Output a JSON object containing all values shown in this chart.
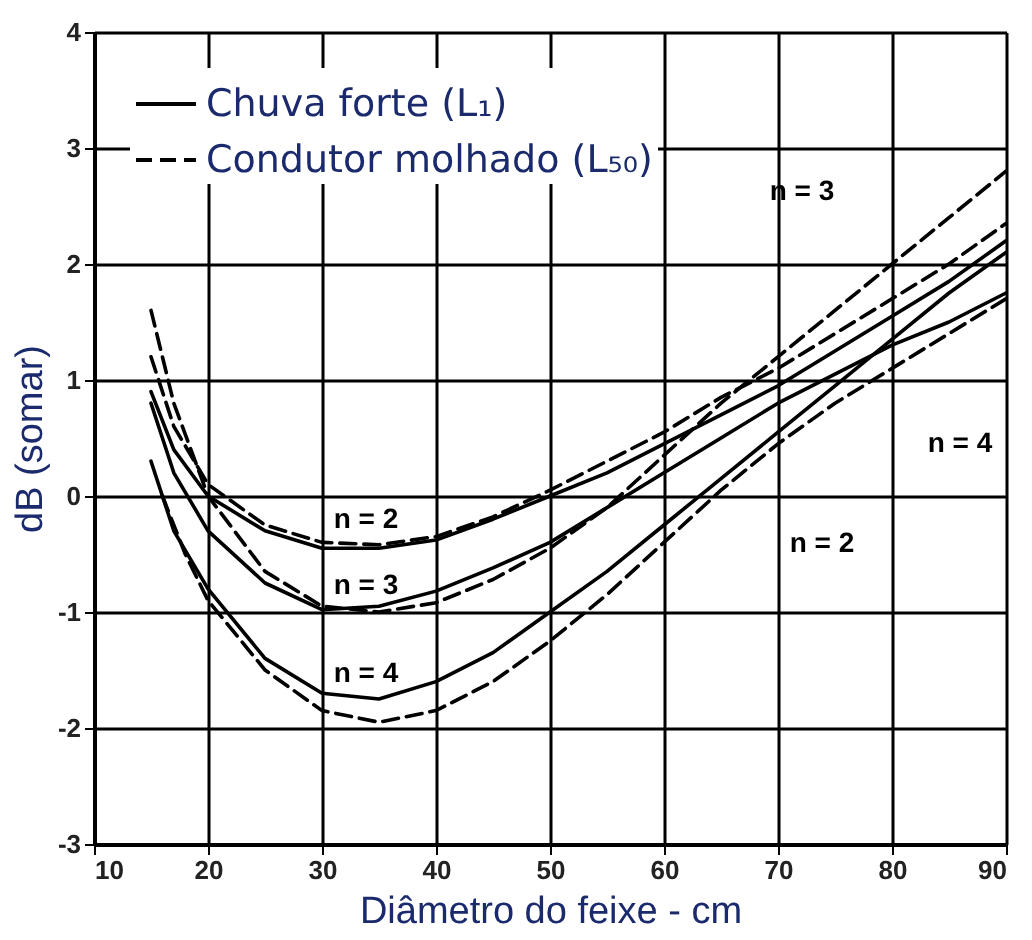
{
  "chart_data": {
    "type": "line",
    "xlabel": "Diâmetro do feixe - cm",
    "ylabel": "dB (somar)",
    "xlim": [
      10,
      90
    ],
    "xticks": [
      10,
      20,
      30,
      40,
      50,
      60,
      70,
      80,
      90
    ],
    "ylim": [
      -3,
      4
    ],
    "yticks": [
      -3,
      -2,
      -1,
      0,
      1,
      2,
      3,
      4
    ],
    "grid": true,
    "legend": "top left",
    "marker": "none",
    "series": [
      {
        "name": "Chuva forte (L₁)",
        "color": "#000000",
        "line_style": "solid",
        "x": [
          15,
          17,
          20,
          25,
          30,
          35,
          40,
          45,
          50,
          55,
          60,
          65,
          70,
          75,
          80,
          85,
          90
        ],
        "values": [
          0.9,
          0.4,
          0.0,
          -0.3,
          -0.45,
          -0.45,
          -0.38,
          -0.2,
          0.0,
          0.2,
          0.45,
          0.7,
          0.95,
          1.25,
          1.55,
          1.85,
          2.2
        ]
      },
      {
        "name": "Condutor molhado (L₅₀)",
        "color": "#000000",
        "line_style": "dashed",
        "x": [
          15,
          17,
          20,
          25,
          30,
          35,
          40,
          45,
          50,
          55,
          60,
          65,
          70,
          75,
          80,
          85,
          90
        ],
        "values": [
          1.2,
          0.6,
          0.1,
          -0.25,
          -0.4,
          -0.42,
          -0.35,
          -0.18,
          0.05,
          0.3,
          0.55,
          0.85,
          1.1,
          1.4,
          1.7,
          2.0,
          2.35
        ]
      },
      {
        "color": "#000000",
        "line_style": "solid",
        "x": [
          15,
          17,
          20,
          25,
          30,
          35,
          40,
          45,
          50,
          55,
          60,
          65,
          70,
          75,
          80,
          85,
          90
        ],
        "values": [
          0.8,
          0.2,
          -0.3,
          -0.75,
          -0.98,
          -0.95,
          -0.82,
          -0.62,
          -0.4,
          -0.1,
          0.2,
          0.5,
          0.8,
          1.05,
          1.3,
          1.5,
          1.75
        ]
      },
      {
        "color": "#000000",
        "line_style": "dashed",
        "x": [
          15,
          17,
          20,
          25,
          30,
          35,
          40,
          45,
          50,
          55,
          60,
          65,
          70,
          75,
          80,
          85,
          90
        ],
        "values": [
          1.6,
          0.8,
          0.0,
          -0.65,
          -0.95,
          -1.0,
          -0.92,
          -0.72,
          -0.45,
          -0.1,
          0.35,
          0.8,
          1.2,
          1.6,
          2.0,
          2.4,
          2.8
        ]
      },
      {
        "color": "#000000",
        "line_style": "solid",
        "x": [
          15,
          17,
          20,
          25,
          30,
          35,
          40,
          45,
          50,
          55,
          60,
          65,
          70,
          75,
          80,
          85,
          90
        ],
        "values": [
          0.3,
          -0.3,
          -0.8,
          -1.4,
          -1.7,
          -1.75,
          -1.6,
          -1.35,
          -1.0,
          -0.65,
          -0.25,
          0.15,
          0.55,
          0.95,
          1.35,
          1.75,
          2.1
        ]
      },
      {
        "color": "#000000",
        "line_style": "dashed",
        "x": [
          16,
          18,
          20,
          25,
          30,
          35,
          40,
          45,
          50,
          55,
          60,
          65,
          70,
          75,
          80,
          85,
          90
        ],
        "values": [
          0.0,
          -0.5,
          -0.9,
          -1.5,
          -1.85,
          -1.95,
          -1.85,
          -1.6,
          -1.25,
          -0.85,
          -0.4,
          0.05,
          0.45,
          0.8,
          1.1,
          1.4,
          1.7
        ]
      }
    ],
    "annotations": [
      "n = 2",
      "n = 3",
      "n = 4",
      "n = 3",
      "n = 4",
      "n = 2"
    ]
  }
}
